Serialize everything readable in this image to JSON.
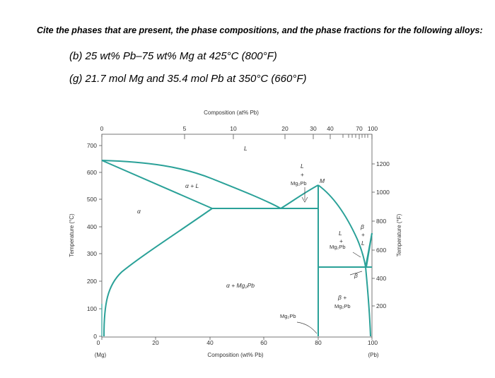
{
  "question": {
    "title": "Cite the phases that are present, the phase compositions, and the phase fractions for the following alloys:",
    "items": [
      "(b) 25 wt% Pb–75 wt% Mg at 425°C (800°F)",
      "(g) 21.7 mol Mg and 35.4 mol Pb at 350°C (660°F)"
    ]
  },
  "diagram": {
    "top_axis_title": "Composition (at% Pb)",
    "top_ticks": [
      "0",
      "5",
      "10",
      "20",
      "30",
      "40",
      "70",
      "100"
    ],
    "bottom_axis_title": "Composition (wt% Pb)",
    "bottom_ticks": [
      "0",
      "20",
      "40",
      "60",
      "80",
      "100"
    ],
    "left_end_label": "(Mg)",
    "right_end_label": "(Pb)",
    "left_axis_title": "Temperature (°C)",
    "left_ticks": [
      "0",
      "100",
      "200",
      "300",
      "400",
      "500",
      "600",
      "700"
    ],
    "right_axis_title": "Temperature (°F)",
    "right_ticks": [
      "200",
      "400",
      "600",
      "800",
      "1000",
      "1200"
    ],
    "region_labels": {
      "liquid": "L",
      "alpha": "α",
      "alpha_liquid": "α + L",
      "alpha_mg2pb": "α + Mg₂Pb",
      "liquid_mg2pb_top": [
        "L",
        "+",
        "Mg₂Pb"
      ],
      "m_point": "M",
      "liquid_mg2pb_right": [
        "L",
        "+",
        "Mg₂Pb"
      ],
      "beta_liquid": [
        "β",
        "+",
        "L"
      ],
      "beta": "β",
      "beta_mg2pb": [
        "β +",
        "Mg₂Pb"
      ],
      "mg2pb": "Mg₂Pb"
    },
    "line_color": "#2aa198"
  }
}
